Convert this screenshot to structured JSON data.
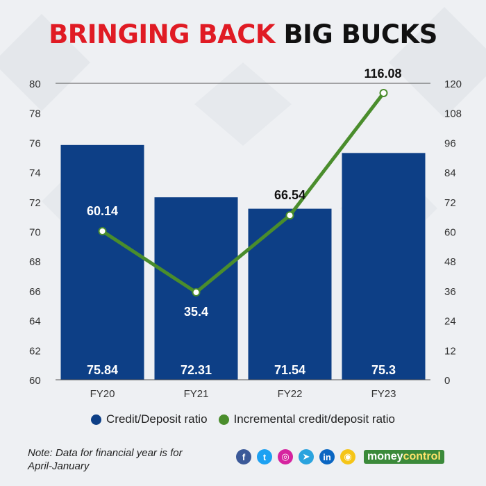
{
  "title": {
    "part1": "BRINGING BACK",
    "part2": "BIG BUCKS"
  },
  "colors": {
    "bar": "#0d3f86",
    "line": "#4a8d2c",
    "title_red": "#e01b24",
    "title_dark": "#111111"
  },
  "chart_data": {
    "type": "bar",
    "categories": [
      "FY20",
      "FY21",
      "FY22",
      "FY23"
    ],
    "series": [
      {
        "name": "Credit/Deposit ratio",
        "type": "bar",
        "axis": "left",
        "values": [
          75.84,
          72.31,
          71.54,
          75.3
        ]
      },
      {
        "name": "Incremental credit/deposit ratio",
        "type": "line",
        "axis": "right",
        "values": [
          60.14,
          35.4,
          66.54,
          116.08
        ]
      }
    ],
    "ylim_left": [
      60,
      80
    ],
    "yticks_left": [
      60,
      62,
      64,
      66,
      68,
      70,
      72,
      74,
      76,
      78,
      80
    ],
    "ylim_right": [
      0,
      120
    ],
    "yticks_right": [
      0,
      12,
      24,
      36,
      48,
      60,
      72,
      84,
      96,
      108,
      120
    ],
    "grid": false,
    "legend": "bottom"
  },
  "note": "Note: Data for financial year is for April-January",
  "socials": [
    {
      "icon": "facebook-icon",
      "glyph": "f",
      "color": "#3b5998"
    },
    {
      "icon": "twitter-icon",
      "glyph": "t",
      "color": "#1da1f2"
    },
    {
      "icon": "instagram-icon",
      "glyph": "◎",
      "color": "#d6249f"
    },
    {
      "icon": "telegram-icon",
      "glyph": "➤",
      "color": "#2aa3de"
    },
    {
      "icon": "linkedin-icon",
      "glyph": "in",
      "color": "#0a66c2"
    },
    {
      "icon": "koo-icon",
      "glyph": "◉",
      "color": "#f5c518"
    }
  ],
  "brand": {
    "first": "money",
    "second": "control"
  }
}
